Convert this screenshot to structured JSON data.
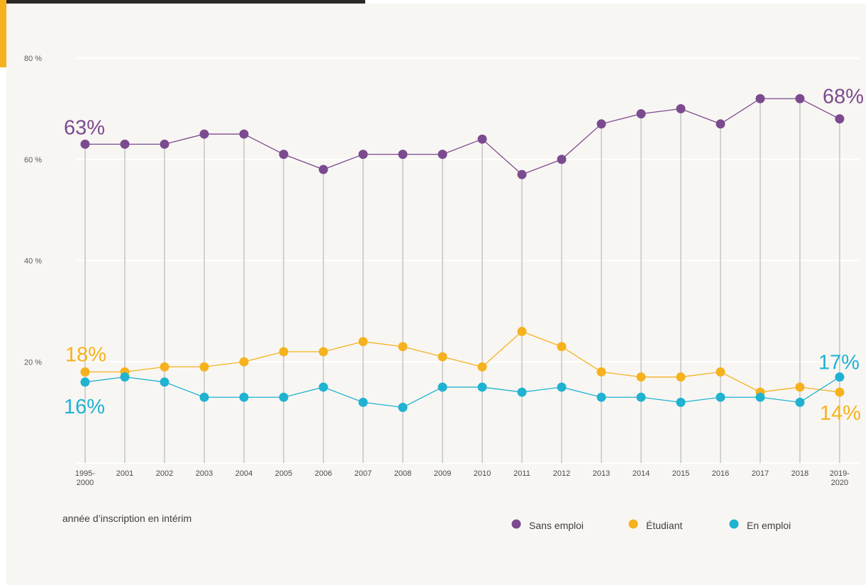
{
  "chart_data": {
    "type": "line",
    "x": [
      "1995-2000",
      "2001",
      "2002",
      "2003",
      "2004",
      "2005",
      "2006",
      "2007",
      "2008",
      "2009",
      "2010",
      "2011",
      "2012",
      "2013",
      "2014",
      "2015",
      "2016",
      "2017",
      "2018",
      "2019-2020"
    ],
    "xlabel": "année d’inscription en intérim",
    "ylim": [
      0,
      80
    ],
    "yticks": [
      20,
      40,
      60,
      80
    ],
    "ytick_labels": [
      "20 %",
      "40 %",
      "60 %",
      "80 %"
    ],
    "grid": true,
    "legend_position": "bottom-right",
    "series": [
      {
        "name": "Sans emploi",
        "color": "#7b4a8f",
        "values": [
          63,
          63,
          63,
          65,
          65,
          61,
          58,
          61,
          61,
          61,
          64,
          57,
          60,
          67,
          69,
          70,
          67,
          72,
          72,
          68
        ],
        "start_label": "63%",
        "end_label": "68%"
      },
      {
        "name": "Étudiant",
        "color": "#f5b21e",
        "values": [
          18,
          18,
          19,
          19,
          20,
          22,
          22,
          24,
          23,
          21,
          19,
          26,
          23,
          18,
          17,
          17,
          18,
          14,
          15,
          14
        ],
        "start_label": "18%",
        "end_label": "14%"
      },
      {
        "name": "En emploi",
        "color": "#1fb2d1",
        "values": [
          16,
          17,
          16,
          13,
          13,
          13,
          15,
          12,
          11,
          15,
          15,
          14,
          15,
          13,
          13,
          12,
          13,
          13,
          12,
          17
        ],
        "start_label": "16%",
        "end_label": "17%"
      }
    ]
  }
}
